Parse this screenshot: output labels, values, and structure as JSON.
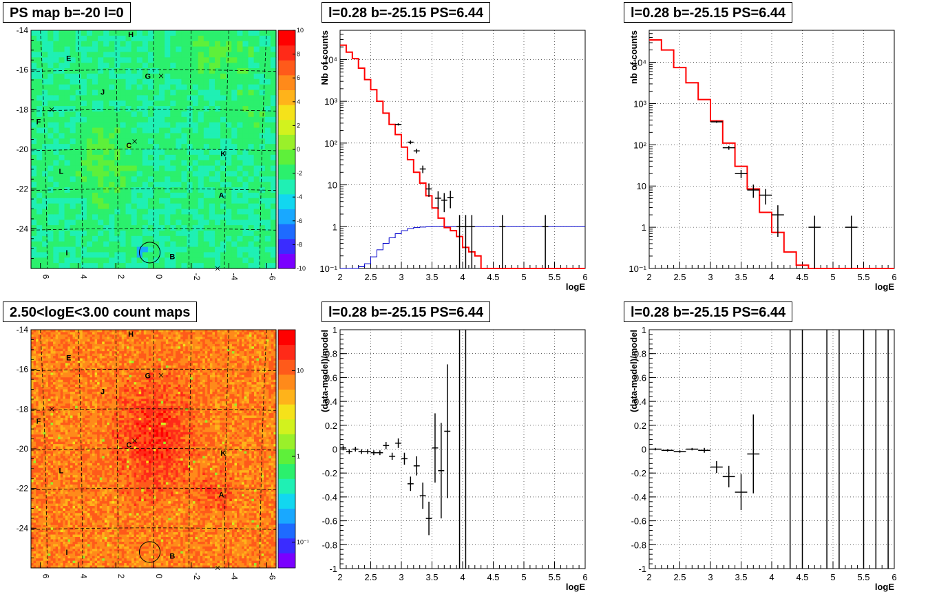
{
  "page": {
    "map_title": "PS map b=-20 l=0",
    "count_title": "2.50<logE<3.00 count maps",
    "spec_title_1": "l=0.28 b=-25.15 PS=6.44",
    "spec_title_2": "l=0.28 b=-25.15 PS=6.44",
    "res_title_1": "l=0.28 b=-25.15 PS=6.44",
    "res_title_2": "l=0.28 b=-25.15 PS=6.44"
  },
  "chart_data": [
    {
      "type": "heatmap",
      "id": "ps_map",
      "title": "PS map b=-20 l=0",
      "x_ticks": [
        "6",
        "4",
        "2",
        "0",
        "-2",
        "-4",
        "-6"
      ],
      "y_ticks": [
        "-14",
        "-16",
        "-18",
        "-20",
        "-22",
        "-24"
      ],
      "xlim": [
        6.5,
        -6.5
      ],
      "ylim": [
        -26,
        -14
      ],
      "colorbar": {
        "min": -10,
        "max": 10,
        "ticks": [
          "10",
          "8",
          "6",
          "4",
          "2",
          "0",
          "-2",
          "-4",
          "-6",
          "-8",
          "-10"
        ]
      },
      "colors": [
        "#7a00ff",
        "#3a2cff",
        "#1e6bff",
        "#19a8ff",
        "#12d7f0",
        "#1ff0b4",
        "#2bf06d",
        "#5ef03a",
        "#9af02a",
        "#d2f21e",
        "#f5e21a",
        "#ffb31a",
        "#ff8a1a",
        "#ff5a1a",
        "#ff2a18",
        "#ff0000"
      ],
      "labels": [
        {
          "text": "H",
          "x": 1.2,
          "y": -14.2
        },
        {
          "text": "E",
          "x": 4.5,
          "y": -15.4
        },
        {
          "text": "G",
          "x": 0.3,
          "y": -16.3
        },
        {
          "text": "J",
          "x": 2.7,
          "y": -17.1
        },
        {
          "text": "F",
          "x": 6.1,
          "y": -18.6
        },
        {
          "text": "C",
          "x": 1.3,
          "y": -19.8
        },
        {
          "text": "K",
          "x": -3.7,
          "y": -20.2
        },
        {
          "text": "L",
          "x": 4.9,
          "y": -21.1
        },
        {
          "text": "A",
          "x": -3.6,
          "y": -22.3
        },
        {
          "text": "I",
          "x": 4.6,
          "y": -25.2
        },
        {
          "text": "B",
          "x": -1.0,
          "y": -25.4
        }
      ],
      "crosses": [
        {
          "x": -0.4,
          "y": -16.3
        },
        {
          "x": 5.4,
          "y": -18.0
        },
        {
          "x": 1.0,
          "y": -19.6
        },
        {
          "x": -3.4,
          "y": -26.0
        }
      ],
      "circle": {
        "x": 0.2,
        "y": -25.2,
        "r": 0.55
      }
    },
    {
      "type": "heatmap",
      "id": "count_map",
      "title": "2.50<logE<3.00 count maps",
      "x_ticks": [
        "6",
        "4",
        "2",
        "0",
        "-2",
        "-4",
        "-6"
      ],
      "y_ticks": [
        "-14",
        "-16",
        "-18",
        "-20",
        "-22",
        "-24"
      ],
      "xlim": [
        6.5,
        -6.5
      ],
      "ylim": [
        -26,
        -14
      ],
      "colorbar": {
        "log": true,
        "min": 0.05,
        "max": 30,
        "ticks": [
          "10",
          "1",
          "10⁻¹"
        ]
      },
      "colors": [
        "#7a00ff",
        "#3a2cff",
        "#1e6bff",
        "#19a8ff",
        "#12d7f0",
        "#1ff0b4",
        "#2bf06d",
        "#5ef03a",
        "#9af02a",
        "#d2f21e",
        "#f5e21a",
        "#ffb31a",
        "#ff8a1a",
        "#ff5a1a",
        "#ff2a18",
        "#ff0000"
      ],
      "labels": [
        {
          "text": "H",
          "x": 1.2,
          "y": -14.2
        },
        {
          "text": "E",
          "x": 4.5,
          "y": -15.4
        },
        {
          "text": "G",
          "x": 0.3,
          "y": -16.3
        },
        {
          "text": "J",
          "x": 2.7,
          "y": -17.1
        },
        {
          "text": "F",
          "x": 6.1,
          "y": -18.6
        },
        {
          "text": "C",
          "x": 1.3,
          "y": -19.8
        },
        {
          "text": "K",
          "x": -3.7,
          "y": -20.2
        },
        {
          "text": "L",
          "x": 4.9,
          "y": -21.1
        },
        {
          "text": "A",
          "x": -3.6,
          "y": -22.3
        },
        {
          "text": "I",
          "x": 4.6,
          "y": -25.2
        },
        {
          "text": "B",
          "x": -1.0,
          "y": -25.4
        }
      ],
      "crosses": [
        {
          "x": -0.4,
          "y": -16.3
        },
        {
          "x": 5.4,
          "y": -18.0
        },
        {
          "x": 1.0,
          "y": -19.6
        },
        {
          "x": -3.4,
          "y": -26.0
        }
      ],
      "circle": {
        "x": 0.2,
        "y": -25.2,
        "r": 0.55
      }
    },
    {
      "type": "line",
      "id": "spectrum_fine",
      "title": "l=0.28 b=-25.15 PS=6.44",
      "xlabel": "logE",
      "ylabel": "Nb of counts",
      "log_y": true,
      "xlim": [
        2,
        6
      ],
      "ylim": [
        0.1,
        50000
      ],
      "x_ticks": [
        "2",
        "2.5",
        "3",
        "3.5",
        "4",
        "4.5",
        "5",
        "5.5",
        "6"
      ],
      "y_ticks": [
        {
          "v": 0.1,
          "label": "10⁻¹"
        },
        {
          "v": 1,
          "label": "1"
        },
        {
          "v": 10,
          "label": "10"
        },
        {
          "v": 100,
          "label": "10²"
        },
        {
          "v": 1000,
          "label": "10³"
        },
        {
          "v": 10000,
          "label": "10⁴"
        }
      ],
      "grid": true,
      "model": {
        "color": "#ff0000",
        "edges": [
          2.0,
          2.1,
          2.2,
          2.3,
          2.4,
          2.5,
          2.6,
          2.7,
          2.8,
          2.9,
          3.0,
          3.1,
          3.2,
          3.3,
          3.4,
          3.5,
          3.6,
          3.7,
          3.8,
          3.9,
          4.0,
          4.1,
          4.2,
          4.3,
          6.0
        ],
        "values": [
          22000,
          15000,
          10500,
          6200,
          3300,
          1900,
          1000,
          520,
          280,
          160,
          80,
          40,
          20,
          11,
          5.5,
          2.8,
          1.6,
          0.95,
          0.8,
          0.58,
          0.32,
          0.25,
          0.2,
          0.1
        ]
      },
      "exposure": {
        "color": "#0000cc",
        "x": [
          2.0,
          2.1,
          2.2,
          2.3,
          2.4,
          2.5,
          2.6,
          2.7,
          2.8,
          2.9,
          3.0,
          3.1,
          3.2,
          3.3,
          3.4,
          3.5,
          6.0
        ],
        "y": [
          0.1,
          0.1,
          0.1,
          0.11,
          0.13,
          0.19,
          0.28,
          0.4,
          0.54,
          0.68,
          0.8,
          0.9,
          0.95,
          0.98,
          0.99,
          1.0,
          1.0
        ]
      },
      "points": [
        {
          "x": 2.95,
          "y": 280
        },
        {
          "x": 3.15,
          "y": 105
        },
        {
          "x": 3.25,
          "y": 65
        },
        {
          "x": 3.35,
          "y": 24
        },
        {
          "x": 3.45,
          "y": 8
        },
        {
          "x": 3.6,
          "y": 4.8
        },
        {
          "x": 3.7,
          "y": 4.3
        },
        {
          "x": 3.8,
          "y": 5
        },
        {
          "x": 3.95,
          "y": 1
        },
        {
          "x": 4.05,
          "y": 1
        },
        {
          "x": 4.15,
          "y": 1
        },
        {
          "x": 4.65,
          "y": 1
        },
        {
          "x": 5.35,
          "y": 1
        }
      ]
    },
    {
      "type": "line",
      "id": "spectrum_coarse",
      "title": "l=0.28 b=-25.15 PS=6.44",
      "xlabel": "logE",
      "ylabel": "nb of counts",
      "log_y": true,
      "xlim": [
        2,
        6
      ],
      "ylim": [
        0.1,
        60000
      ],
      "x_ticks": [
        "2",
        "2.5",
        "3",
        "3.5",
        "4",
        "4.5",
        "5",
        "5.5",
        "6"
      ],
      "y_ticks": [
        {
          "v": 0.1,
          "label": "10⁻¹"
        },
        {
          "v": 1,
          "label": "1"
        },
        {
          "v": 10,
          "label": "10"
        },
        {
          "v": 100,
          "label": "10²"
        },
        {
          "v": 1000,
          "label": "10³"
        },
        {
          "v": 10000,
          "label": "10⁴"
        }
      ],
      "grid": true,
      "model": {
        "color": "#ff0000",
        "edges": [
          2.0,
          2.2,
          2.4,
          2.6,
          2.8,
          3.0,
          3.2,
          3.4,
          3.6,
          3.8,
          4.0,
          4.2,
          4.4,
          4.6,
          6.0
        ],
        "values": [
          35000,
          20000,
          7500,
          3200,
          1250,
          380,
          110,
          30,
          8.5,
          2.3,
          0.75,
          0.25,
          0.12,
          0.1
        ]
      },
      "points": [
        {
          "x": 3.1,
          "y": 360
        },
        {
          "x": 3.3,
          "y": 85
        },
        {
          "x": 3.5,
          "y": 20
        },
        {
          "x": 3.7,
          "y": 8
        },
        {
          "x": 3.9,
          "y": 6
        },
        {
          "x": 4.1,
          "y": 2
        },
        {
          "x": 4.7,
          "y": 1
        },
        {
          "x": 5.3,
          "y": 1
        }
      ]
    },
    {
      "type": "scatter",
      "id": "residuals_fine",
      "title": "l=0.28 b=-25.15 PS=6.44",
      "xlabel": "logE",
      "ylabel": "(data-model)/model",
      "xlim": [
        2,
        6
      ],
      "ylim": [
        -1,
        1
      ],
      "x_ticks": [
        "2",
        "2.5",
        "3",
        "3.5",
        "4",
        "4.5",
        "5",
        "5.5",
        "6"
      ],
      "y_ticks": [
        "-1",
        "-0.8",
        "-0.6",
        "-0.4",
        "-0.2",
        "0",
        "0.2",
        "0.4",
        "0.6",
        "0.8",
        "1"
      ],
      "grid": true,
      "points": [
        {
          "x": 2.05,
          "y": 0.01,
          "e": 0.02
        },
        {
          "x": 2.15,
          "y": -0.02,
          "e": 0.02
        },
        {
          "x": 2.25,
          "y": 0.0,
          "e": 0.02
        },
        {
          "x": 2.35,
          "y": -0.02,
          "e": 0.02
        },
        {
          "x": 2.45,
          "y": -0.02,
          "e": 0.02
        },
        {
          "x": 2.55,
          "y": -0.03,
          "e": 0.02
        },
        {
          "x": 2.65,
          "y": -0.03,
          "e": 0.02
        },
        {
          "x": 2.75,
          "y": 0.03,
          "e": 0.03
        },
        {
          "x": 2.85,
          "y": -0.06,
          "e": 0.03
        },
        {
          "x": 2.95,
          "y": 0.05,
          "e": 0.04
        },
        {
          "x": 3.05,
          "y": -0.08,
          "e": 0.05
        },
        {
          "x": 3.15,
          "y": -0.29,
          "e": 0.06
        },
        {
          "x": 3.25,
          "y": -0.14,
          "e": 0.08
        },
        {
          "x": 3.35,
          "y": -0.39,
          "e": 0.11
        },
        {
          "x": 3.45,
          "y": -0.58,
          "e": 0.14
        },
        {
          "x": 3.55,
          "y": 0.01,
          "e": 0.29
        },
        {
          "x": 3.65,
          "y": -0.18,
          "e": 0.4
        },
        {
          "x": 3.75,
          "y": 0.15,
          "e": 0.56
        },
        {
          "x": 3.95,
          "y": 0.31,
          "e": 1.4
        },
        {
          "x": 4.05,
          "y": 0.88,
          "e": 2.0
        }
      ]
    },
    {
      "type": "scatter",
      "id": "residuals_coarse",
      "title": "l=0.28 b=-25.15 PS=6.44",
      "xlabel": "logE",
      "ylabel": "(data-model)/model",
      "xlim": [
        2,
        6
      ],
      "ylim": [
        -1,
        1
      ],
      "x_ticks": [
        "2",
        "2.5",
        "3",
        "3.5",
        "4",
        "4.5",
        "5",
        "5.5",
        "6"
      ],
      "y_ticks": [
        "-1",
        "-0.8",
        "-0.6",
        "-0.4",
        "-0.2",
        "0",
        "0.2",
        "0.4",
        "0.6",
        "0.8",
        "1"
      ],
      "grid": true,
      "points": [
        {
          "x": 2.1,
          "y": 0.0,
          "e": 0.01
        },
        {
          "x": 2.3,
          "y": -0.01,
          "e": 0.01
        },
        {
          "x": 2.5,
          "y": -0.02,
          "e": 0.01
        },
        {
          "x": 2.7,
          "y": 0.0,
          "e": 0.01
        },
        {
          "x": 2.9,
          "y": -0.01,
          "e": 0.02
        },
        {
          "x": 3.1,
          "y": -0.15,
          "e": 0.05
        },
        {
          "x": 3.3,
          "y": -0.23,
          "e": 0.09
        },
        {
          "x": 3.5,
          "y": -0.36,
          "e": 0.15
        },
        {
          "x": 3.7,
          "y": -0.04,
          "e": 0.33
        },
        {
          "x": 4.3,
          "y": 0,
          "e": 5
        },
        {
          "x": 4.5,
          "y": 0,
          "e": 5
        },
        {
          "x": 4.9,
          "y": 0,
          "e": 5
        },
        {
          "x": 5.1,
          "y": 0,
          "e": 5
        },
        {
          "x": 5.5,
          "y": 0,
          "e": 5
        },
        {
          "x": 5.7,
          "y": 0,
          "e": 5
        },
        {
          "x": 5.9,
          "y": 0,
          "e": 5
        }
      ]
    }
  ]
}
